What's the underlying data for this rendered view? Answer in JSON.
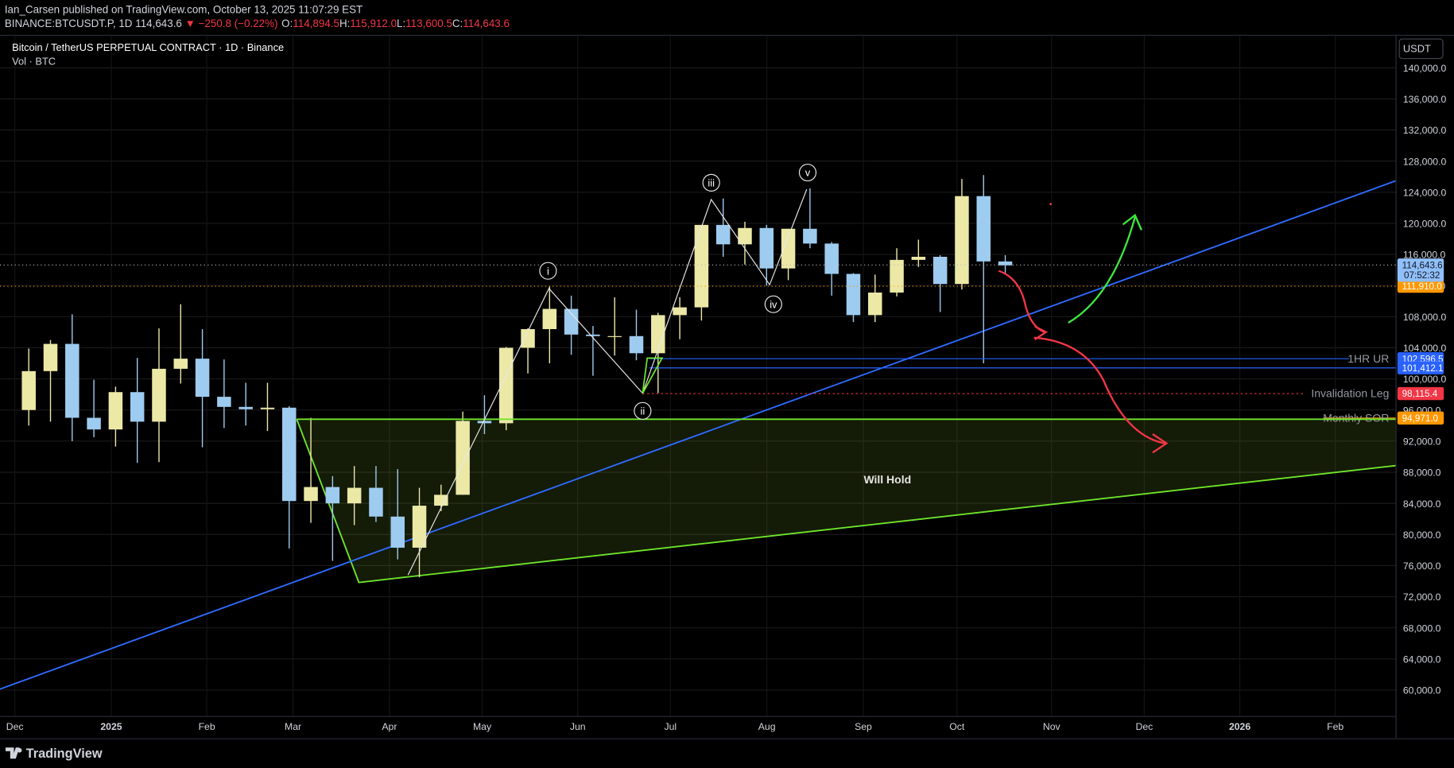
{
  "header": {
    "publisher": "Ian_Carsen",
    "published": " published on TradingView.com, October 13, 2025 11:07:29 EST",
    "symbol": "BINANCE:BTCUSDT.P, 1D",
    "last": "114,643.6",
    "change": "▼ −250.8 (−0.22%)",
    "ohlc": [
      {
        "label": "O:",
        "value": "114,894.5"
      },
      {
        "label": "H:",
        "value": "115,912.0"
      },
      {
        "label": "L:",
        "value": "113,600.5"
      },
      {
        "label": "C:",
        "value": "114,643.6"
      }
    ]
  },
  "legend": {
    "title": "Bitcoin / TetherUS PERPETUAL CONTRACT · 1D · Binance",
    "volume": "Vol · BTC"
  },
  "currency": "USDT",
  "price_axis": {
    "ticks": [
      {
        "value": 60000,
        "label": "60,000.0"
      },
      {
        "value": 64000,
        "label": "64,000.0"
      },
      {
        "value": 68000,
        "label": "68,000.0"
      },
      {
        "value": 72000,
        "label": "72,000.0"
      },
      {
        "value": 76000,
        "label": "76,000.0"
      },
      {
        "value": 80000,
        "label": "80,000.0"
      },
      {
        "value": 84000,
        "label": "84,000.0"
      },
      {
        "value": 88000,
        "label": "88,000.0"
      },
      {
        "value": 92000,
        "label": "92,000.0"
      },
      {
        "value": 96000,
        "label": "96,000.0"
      },
      {
        "value": 100000,
        "label": "100,000.0"
      },
      {
        "value": 104000,
        "label": "104,000.0"
      },
      {
        "value": 108000,
        "label": "108,000.0"
      },
      {
        "value": 112000,
        "label": "112,000.0"
      },
      {
        "value": 116000,
        "label": "116,000.0"
      },
      {
        "value": 120000,
        "label": "120,000.0"
      },
      {
        "value": 124000,
        "label": "124,000.0"
      },
      {
        "value": 128000,
        "label": "128,000.0"
      },
      {
        "value": 132000,
        "label": "132,000.0"
      },
      {
        "value": 136000,
        "label": "136,000.0"
      },
      {
        "value": 140000,
        "label": "140,000.0"
      }
    ]
  },
  "time_axis": {
    "labels": [
      "Dec",
      "2025",
      "Feb",
      "Mar",
      "Apr",
      "May",
      "Jun",
      "Jul",
      "Aug",
      "Sep",
      "Oct",
      "Nov",
      "Dec",
      "2026",
      "Feb"
    ]
  },
  "candles": {
    "up_color": "#ece8a6",
    "down_color": "#9ecbf0",
    "weeks": [
      [
        96000,
        103900,
        94000,
        101000
      ],
      [
        101000,
        105000,
        94500,
        104500
      ],
      [
        104500,
        108300,
        92000,
        95000
      ],
      [
        95000,
        99900,
        92500,
        93500
      ],
      [
        93500,
        99000,
        91300,
        98300
      ],
      [
        98300,
        102700,
        89200,
        94500
      ],
      [
        94500,
        106500,
        89300,
        101300
      ],
      [
        101300,
        109600,
        99400,
        102600
      ],
      [
        102600,
        106400,
        91200,
        97700
      ],
      [
        97700,
        102500,
        93700,
        96400
      ],
      [
        96400,
        99500,
        94000,
        96100
      ],
      [
        96100,
        99500,
        93300,
        96300
      ],
      [
        96300,
        96500,
        78200,
        84300
      ],
      [
        84300,
        95000,
        81500,
        86100
      ],
      [
        86100,
        87500,
        76600,
        84000
      ],
      [
        84000,
        88800,
        81200,
        86000
      ],
      [
        86000,
        88800,
        81600,
        82300
      ],
      [
        82300,
        88400,
        76800,
        78300
      ],
      [
        78300,
        86000,
        74500,
        83700
      ],
      [
        83700,
        86400,
        83000,
        85100
      ],
      [
        85100,
        95800,
        85100,
        94600
      ],
      [
        94600,
        97900,
        92900,
        94300
      ],
      [
        94300,
        104100,
        93400,
        104000
      ],
      [
        104000,
        106500,
        100700,
        106400
      ],
      [
        106400,
        111900,
        102000,
        109000
      ],
      [
        109000,
        110700,
        103100,
        105700
      ],
      [
        105700,
        106800,
        100400,
        105500
      ],
      [
        105500,
        110500,
        103000,
        105500
      ],
      [
        105500,
        108900,
        102400,
        103300
      ],
      [
        103300,
        108500,
        98200,
        108200
      ],
      [
        108200,
        110500,
        105100,
        109200
      ],
      [
        109200,
        119800,
        107500,
        119800
      ],
      [
        119800,
        123200,
        115700,
        117300
      ],
      [
        117300,
        120200,
        114700,
        119400
      ],
      [
        119400,
        119800,
        112000,
        114200
      ],
      [
        114200,
        119300,
        112700,
        119300
      ],
      [
        119300,
        124500,
        116800,
        117400
      ],
      [
        117400,
        117600,
        110700,
        113500
      ],
      [
        113500,
        113600,
        107300,
        108200
      ],
      [
        108200,
        113400,
        107300,
        111100
      ],
      [
        111100,
        116800,
        110600,
        115300
      ],
      [
        115300,
        117900,
        114400,
        115700
      ],
      [
        115700,
        115900,
        108600,
        112200
      ],
      [
        112200,
        125700,
        111500,
        123500
      ],
      [
        123500,
        126200,
        102000,
        115100
      ],
      [
        115100,
        115900,
        113600,
        114600
      ]
    ]
  },
  "levels": [
    {
      "price": 102596.5,
      "label": "102,596.5",
      "name": "1HR UR",
      "color": "#2962ff"
    },
    {
      "price": 101412.1,
      "label": "101,412.1",
      "color": "#2962ff"
    },
    {
      "price": 98115.4,
      "label": "98,115.4",
      "name": "Invalidation Leg",
      "color": "#f23645"
    },
    {
      "price": 94971.0,
      "label": "94,971.0",
      "name": "Monthly SOR",
      "color": "#ff9800"
    },
    {
      "price": 111910.0,
      "label": "111,910.0",
      "color": "#ff9800"
    },
    {
      "price": 114643.6,
      "label": "114,643.6",
      "countdown": "07:52:32",
      "color": "#90bff9"
    }
  ],
  "annotations": {
    "waves": [
      "i",
      "ii",
      "iii",
      "iv",
      "v"
    ],
    "zone": "Will Hold"
  },
  "footer": "TradingView"
}
